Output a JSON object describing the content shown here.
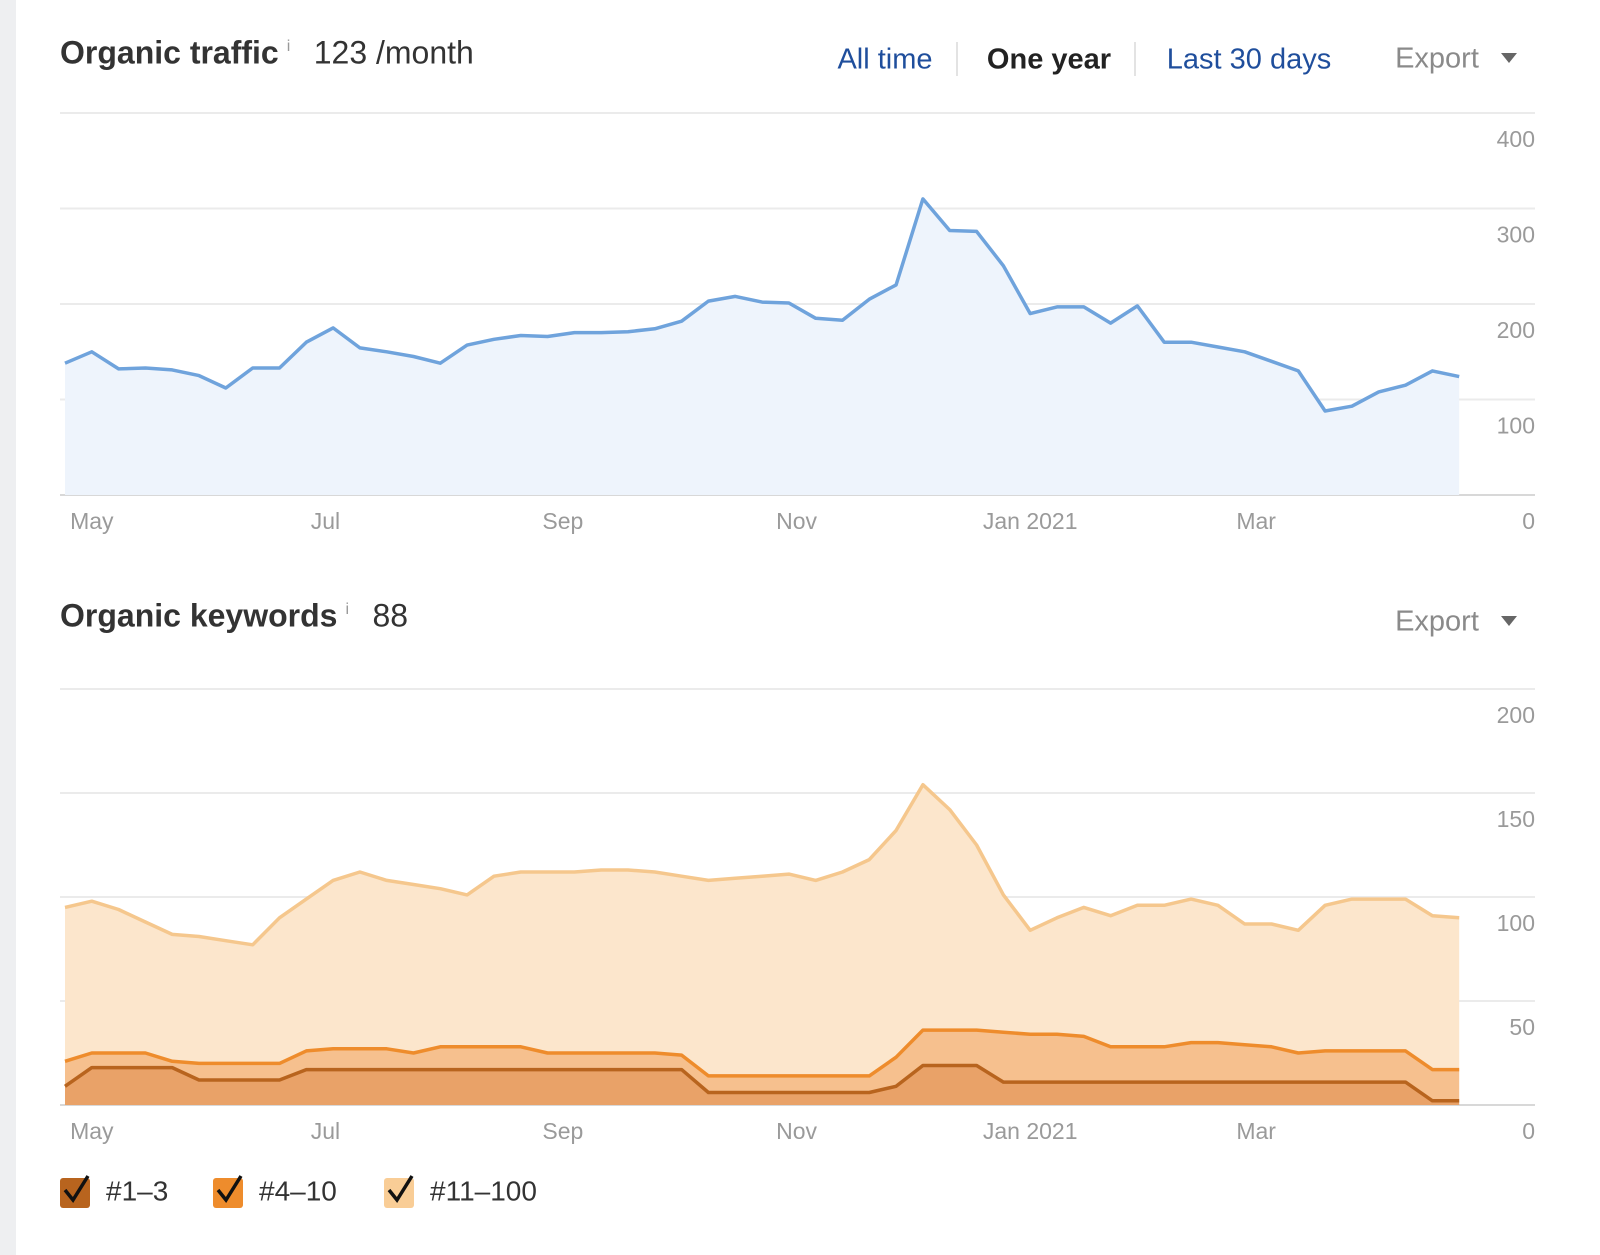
{
  "controls": {
    "ranges": [
      "All time",
      "One year",
      "Last 30 days"
    ],
    "active": 1
  },
  "chart_data": [
    {
      "type": "area",
      "title": "Organic traffic",
      "title_info": "i",
      "subtitle": "123 /month",
      "export": "Export",
      "x": [
        0,
        7,
        14,
        21,
        28,
        35,
        42,
        49,
        56,
        63,
        70,
        77,
        84,
        91,
        98,
        105,
        112,
        119,
        126,
        133,
        140,
        147,
        154,
        161,
        168,
        175,
        182,
        189,
        196,
        203,
        210,
        217,
        224,
        231,
        238,
        245,
        252,
        259,
        266,
        273,
        280,
        287,
        294,
        301,
        308,
        315,
        322,
        329,
        336,
        343,
        350,
        357,
        364
      ],
      "xlim": [
        -1.3,
        383.8
      ],
      "xticks": [
        {
          "value": 7,
          "label": "May"
        },
        {
          "value": 68,
          "label": "Jul"
        },
        {
          "value": 130,
          "label": "Sep"
        },
        {
          "value": 191,
          "label": "Nov"
        },
        {
          "value": 252,
          "label": "Jan 2021"
        },
        {
          "value": 311,
          "label": "Mar"
        }
      ],
      "ylim": [
        0,
        400
      ],
      "yticks": [
        0,
        100,
        200,
        300,
        400
      ],
      "grid": true,
      "series": [
        {
          "name": "Organic traffic",
          "color": "#6fa3dc",
          "fill": "#eef4fc",
          "values": [
            138,
            150,
            132,
            133,
            131,
            125,
            112,
            133,
            133,
            160,
            175,
            154,
            150,
            145,
            138,
            157,
            163,
            167,
            166,
            170,
            170,
            171,
            174,
            182,
            203,
            208,
            202,
            201,
            185,
            183,
            205,
            220,
            310,
            277,
            276,
            240,
            190,
            197,
            197,
            180,
            198,
            160,
            160,
            155,
            150,
            140,
            130,
            88,
            93,
            108,
            115,
            130,
            124
          ]
        }
      ]
    },
    {
      "type": "stacked_area",
      "title": "Organic keywords",
      "title_info": "i",
      "subtitle": "88",
      "export": "Export",
      "x": [
        0,
        7,
        14,
        21,
        28,
        35,
        42,
        49,
        56,
        63,
        70,
        77,
        84,
        91,
        98,
        105,
        112,
        119,
        126,
        133,
        140,
        147,
        154,
        161,
        168,
        175,
        182,
        189,
        196,
        203,
        210,
        217,
        224,
        231,
        238,
        245,
        252,
        259,
        266,
        273,
        280,
        287,
        294,
        301,
        308,
        315,
        322,
        329,
        336,
        343,
        350,
        357,
        364
      ],
      "xlim": [
        -1.3,
        383.8
      ],
      "xticks": [
        {
          "value": 7,
          "label": "May"
        },
        {
          "value": 68,
          "label": "Jul"
        },
        {
          "value": 130,
          "label": "Sep"
        },
        {
          "value": 191,
          "label": "Nov"
        },
        {
          "value": 252,
          "label": "Jan 2021"
        },
        {
          "value": 311,
          "label": "Mar"
        }
      ],
      "ylim": [
        0,
        200
      ],
      "yticks": [
        0,
        50,
        100,
        150,
        200
      ],
      "grid": true,
      "series": [
        {
          "name": "#1–3",
          "color": "#b8641e",
          "fill": "#e9a268",
          "values": [
            9,
            18,
            18,
            18,
            18,
            12,
            12,
            12,
            12,
            17,
            17,
            17,
            17,
            17,
            17,
            17,
            17,
            17,
            17,
            17,
            17,
            17,
            17,
            17,
            6,
            6,
            6,
            6,
            6,
            6,
            6,
            9,
            19,
            19,
            19,
            11,
            11,
            11,
            11,
            11,
            11,
            11,
            11,
            11,
            11,
            11,
            11,
            11,
            11,
            11,
            11,
            2,
            2
          ]
        },
        {
          "name": "#4–10",
          "color": "#ee8c2c",
          "fill": "#f6c08e",
          "values": [
            12,
            7,
            7,
            7,
            3,
            8,
            8,
            8,
            8,
            9,
            10,
            10,
            10,
            8,
            11,
            11,
            11,
            11,
            8,
            8,
            8,
            8,
            8,
            7,
            8,
            8,
            8,
            8,
            8,
            8,
            8,
            14,
            17,
            17,
            17,
            24,
            23,
            23,
            22,
            17,
            17,
            17,
            19,
            19,
            18,
            17,
            14,
            15,
            15,
            15,
            15,
            15,
            15
          ]
        },
        {
          "name": "#11–100",
          "color": "#f5c78d",
          "fill": "#fce6cc",
          "values": [
            74,
            73,
            69,
            63,
            61,
            61,
            59,
            57,
            70,
            73,
            81,
            85,
            81,
            81,
            76,
            73,
            82,
            84,
            87,
            87,
            88,
            88,
            87,
            86,
            94,
            95,
            96,
            97,
            94,
            98,
            104,
            109,
            118,
            106,
            89,
            66,
            50,
            56,
            62,
            63,
            68,
            68,
            69,
            66,
            58,
            59,
            59,
            70,
            73,
            73,
            73,
            74,
            73
          ]
        }
      ]
    }
  ]
}
